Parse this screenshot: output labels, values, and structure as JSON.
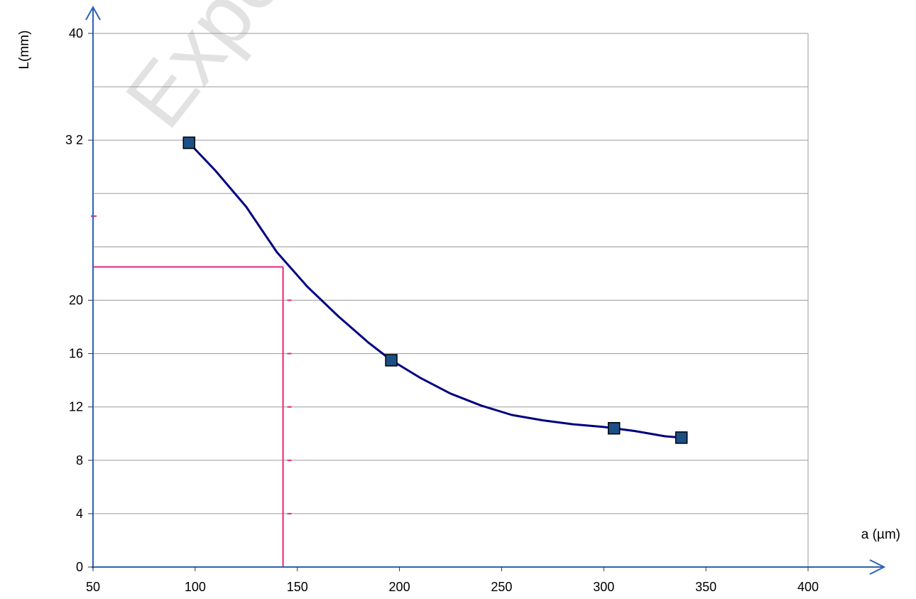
{
  "chart_data": {
    "type": "line",
    "title": "",
    "xlabel": "a (µm)",
    "ylabel": "L(mm)",
    "xlim": [
      50,
      400
    ],
    "ylim": [
      0,
      40
    ],
    "x_ticks": [
      {
        "value": 50,
        "label": "50"
      },
      {
        "value": 100,
        "label": "100"
      },
      {
        "value": 150,
        "label": "150"
      },
      {
        "value": 200,
        "label": "200"
      },
      {
        "value": 250,
        "label": "250"
      },
      {
        "value": 300,
        "label": "300"
      },
      {
        "value": 350,
        "label": "350"
      },
      {
        "value": 400,
        "label": "400"
      }
    ],
    "y_ticks": [
      {
        "value": 0,
        "label": "0"
      },
      {
        "value": 4,
        "label": "4"
      },
      {
        "value": 8,
        "label": "8"
      },
      {
        "value": 12,
        "label": "12"
      },
      {
        "value": 16,
        "label": "16"
      },
      {
        "value": 20,
        "label": "20"
      },
      {
        "value": 32,
        "label": "3 2"
      },
      {
        "value": 40,
        "label": "40"
      }
    ],
    "gridlines_y": [
      0,
      4,
      8,
      12,
      16,
      20,
      24,
      28,
      32,
      36,
      40
    ],
    "grid": true,
    "series": [
      {
        "color": "#000080",
        "marker_color": "#1c4f86",
        "points": [
          {
            "x": 97,
            "y": 31.8
          },
          {
            "x": 196,
            "y": 15.5
          },
          {
            "x": 305,
            "y": 10.4
          },
          {
            "x": 338,
            "y": 9.7
          }
        ],
        "curve": [
          [
            97,
            31.8
          ],
          [
            110,
            29.7
          ],
          [
            125,
            27.0
          ],
          [
            140,
            23.6
          ],
          [
            155,
            21.0
          ],
          [
            170,
            18.8
          ],
          [
            185,
            16.8
          ],
          [
            196,
            15.5
          ],
          [
            210,
            14.2
          ],
          [
            225,
            13.0
          ],
          [
            240,
            12.1
          ],
          [
            255,
            11.4
          ],
          [
            270,
            11.0
          ],
          [
            285,
            10.7
          ],
          [
            300,
            10.5
          ],
          [
            315,
            10.2
          ],
          [
            330,
            9.8
          ],
          [
            338,
            9.7
          ]
        ]
      }
    ],
    "reference_lines": {
      "color": "#e8257a",
      "x": 143,
      "y": 22.5
    },
    "watermark": "Expert"
  }
}
